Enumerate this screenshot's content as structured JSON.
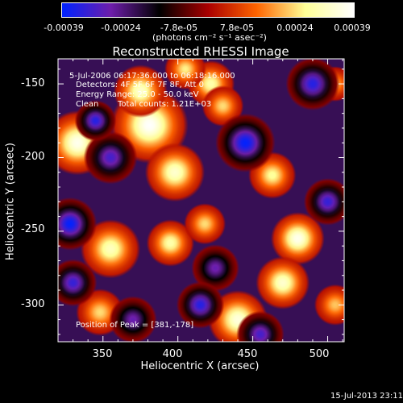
{
  "colorbar": {
    "tick_labels": [
      "-0.00039",
      "-0.00024",
      "-7.8e-05",
      "7.8e-05",
      "0.00024",
      "0.00039"
    ],
    "units": "(photons cm⁻² s⁻¹ asec⁻²)",
    "range": [
      -0.00039,
      0.00039
    ],
    "colors": [
      "#0022ff",
      "#6e1eaa",
      "#000000",
      "#aa0000",
      "#ff6400",
      "#ffff96",
      "#ffffff"
    ]
  },
  "image_info": {
    "time_range": "5-Jul-2006 06:17:36.000 to 06:18:16.000",
    "detectors": "Detectors: 4F 5F 6F 7F 8F, Att 0",
    "energy": "Energy Range: 25.0 - 50.0 keV",
    "clean": "Clean",
    "total_counts": "Total counts: 1.21E+03",
    "peak_position": "Position of Peak = [381,-178]"
  },
  "timestamp": "15-Jul-2013 23:11",
  "chart_data": {
    "type": "heatmap",
    "title": "Reconstructed RHESSI Image",
    "xlabel": "Heliocentric X (arcsec)",
    "ylabel": "Heliocentric Y (arcsec)",
    "xlim": [
      320,
      511
    ],
    "ylim": [
      -325,
      -133
    ],
    "xticks": [
      350,
      400,
      450,
      500
    ],
    "yticks": [
      -150,
      -200,
      -250,
      -300
    ],
    "peak": [
      381,
      -178
    ],
    "blobs": [
      [
        381,
        -178,
        13,
        1.0
      ],
      [
        333,
        -190,
        11,
        0.95
      ],
      [
        375,
        -155,
        9,
        0.85
      ],
      [
        422,
        -150,
        8,
        0.75
      ],
      [
        405,
        -140,
        7,
        0.65
      ],
      [
        430,
        -165,
        7,
        0.6
      ],
      [
        398,
        -210,
        10,
        0.85
      ],
      [
        355,
        -262,
        10,
        0.8
      ],
      [
        395,
        -258,
        8,
        0.75
      ],
      [
        418,
        -245,
        7,
        0.6
      ],
      [
        463,
        -212,
        8,
        0.7
      ],
      [
        480,
        -255,
        9,
        0.95
      ],
      [
        470,
        -285,
        9,
        0.85
      ],
      [
        440,
        -310,
        10,
        0.9
      ],
      [
        348,
        -305,
        8,
        0.6
      ],
      [
        505,
        -300,
        7,
        0.55
      ],
      [
        505,
        -150,
        6,
        0.5
      ],
      [
        490,
        -150,
        9,
        -0.9
      ],
      [
        445,
        -190,
        10,
        -1.0
      ],
      [
        355,
        -200,
        9,
        -0.8
      ],
      [
        328,
        -245,
        9,
        -1.0
      ],
      [
        330,
        -285,
        8,
        -0.85
      ],
      [
        345,
        -175,
        7,
        -0.9
      ],
      [
        455,
        -320,
        8,
        -0.8
      ],
      [
        425,
        -275,
        8,
        -0.7
      ],
      [
        500,
        -230,
        8,
        -0.85
      ],
      [
        415,
        -300,
        8,
        -0.9
      ],
      [
        370,
        -310,
        8,
        -0.7
      ]
    ]
  }
}
